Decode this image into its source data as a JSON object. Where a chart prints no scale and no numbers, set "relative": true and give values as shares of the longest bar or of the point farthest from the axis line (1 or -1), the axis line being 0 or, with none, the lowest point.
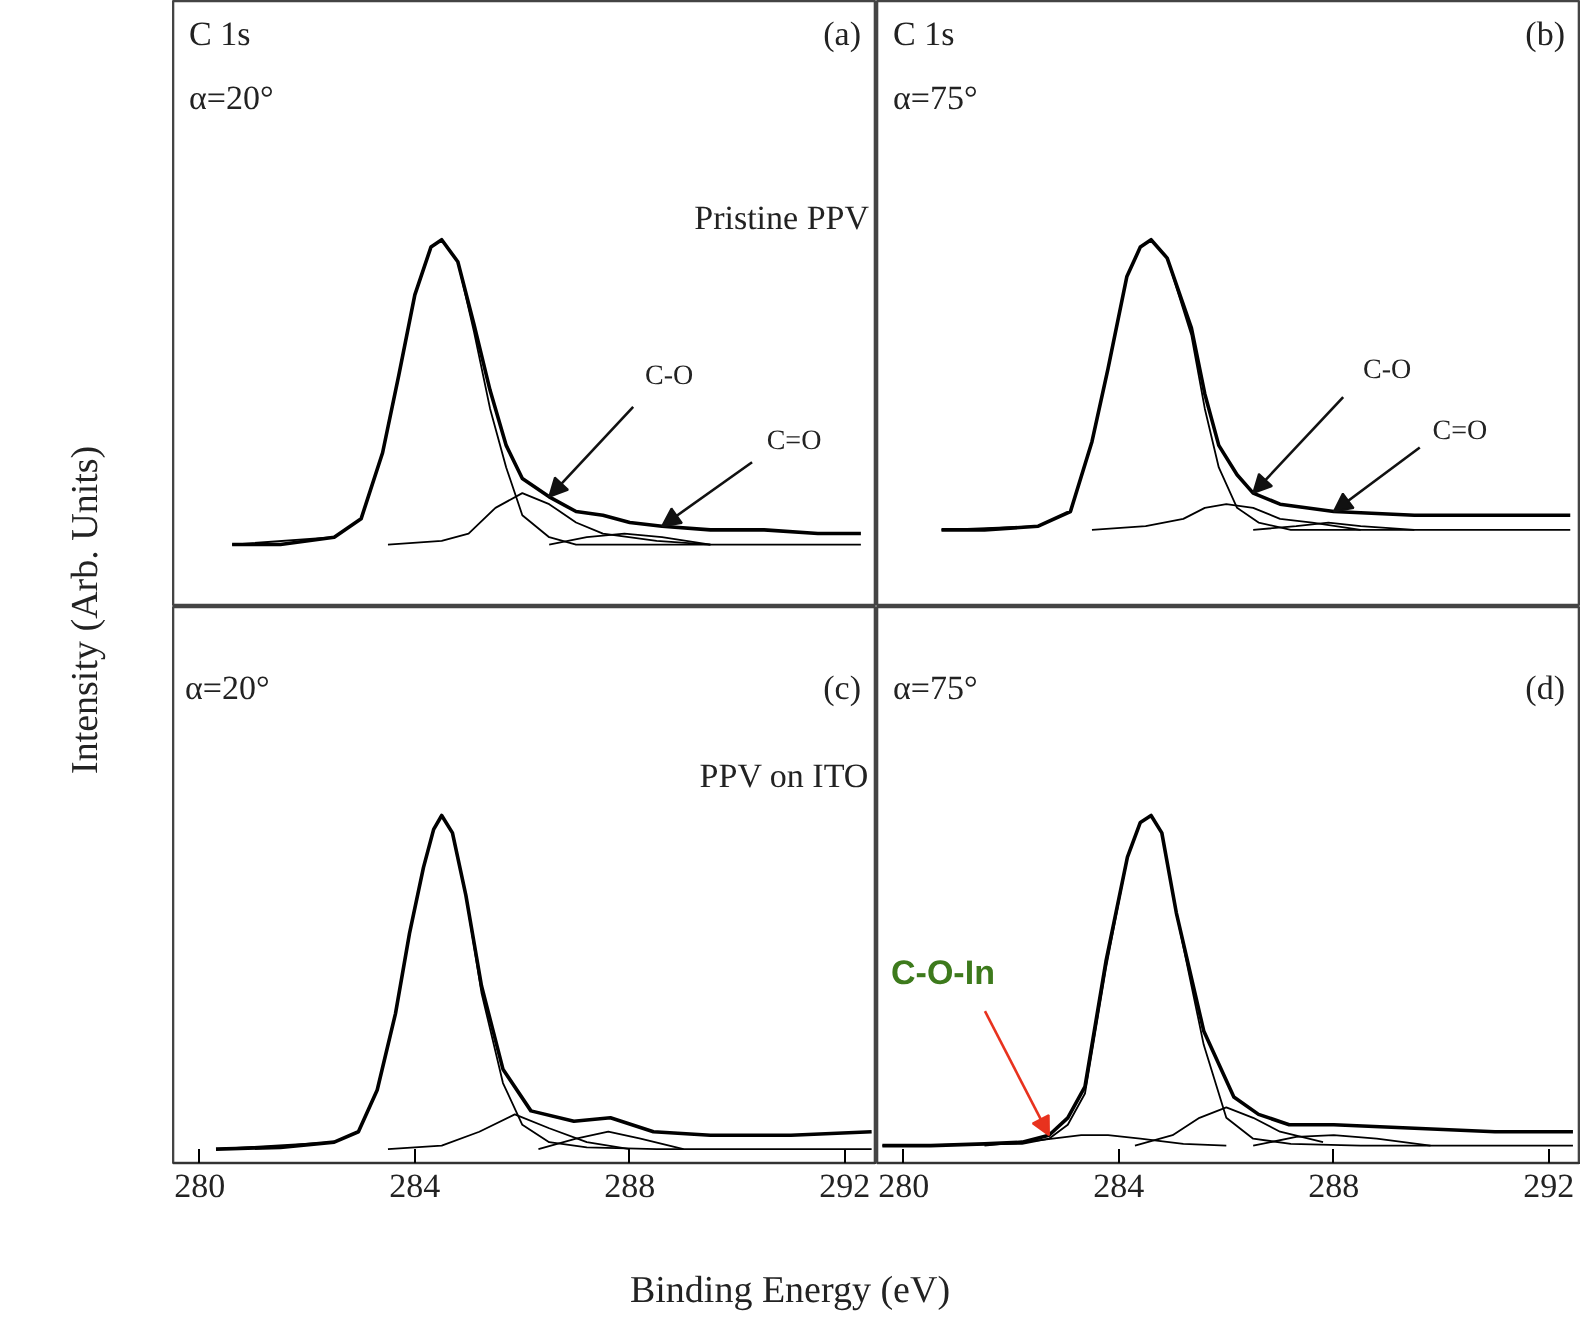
{
  "chart_data": [
    {
      "type": "line",
      "relative": true,
      "xlim": [
        279.5,
        292.6
      ],
      "tick_labels": false,
      "ylabel": "Intensity (Arb. Units)",
      "annotations": [
        "C 1s",
        "α=20°",
        "(a)",
        "Pristine PPV",
        {
          "text": "C-O",
          "x": 286.5,
          "y": 0.3
        },
        {
          "text": "C=O",
          "x": 288.6,
          "y": 0.22
        }
      ],
      "series": [
        {
          "color": "#000000",
          "x": [
            280.6,
            281.5,
            282.5,
            283.0,
            283.4,
            283.7,
            284.0,
            284.3,
            284.5,
            284.8,
            285.1,
            285.4,
            285.7,
            286.0,
            286.5,
            287.0,
            287.5,
            288.0,
            288.6,
            289.5,
            290.5,
            291.5,
            292.3
          ],
          "values": [
            0.17,
            0.17,
            0.19,
            0.24,
            0.42,
            0.63,
            0.85,
            0.98,
            1,
            0.94,
            0.77,
            0.59,
            0.44,
            0.35,
            0.3,
            0.26,
            0.25,
            0.23,
            0.22,
            0.21,
            0.21,
            0.2,
            0.2
          ]
        },
        {
          "color": "#000000",
          "x": [
            280.6,
            282.5,
            283.0,
            283.4,
            283.7,
            284.0,
            284.3,
            284.5,
            284.8,
            285.1,
            285.4,
            285.7,
            286.0,
            286.5,
            287.0,
            288.0,
            290.0,
            292.3
          ],
          "values": [
            0.17,
            0.19,
            0.24,
            0.42,
            0.63,
            0.85,
            0.98,
            1,
            0.94,
            0.75,
            0.54,
            0.38,
            0.25,
            0.19,
            0.17,
            0.17,
            0.17,
            0.17
          ]
        },
        {
          "color": "#000000",
          "x": [
            283.5,
            284.5,
            285.0,
            285.5,
            286.0,
            286.5,
            287.0,
            287.5,
            288.5,
            289.5
          ],
          "values": [
            0.17,
            0.18,
            0.2,
            0.27,
            0.31,
            0.28,
            0.23,
            0.2,
            0.18,
            0.17
          ]
        },
        {
          "color": "#000000",
          "x": [
            286.5,
            287.2,
            287.9,
            288.6,
            289.5
          ],
          "values": [
            0.17,
            0.19,
            0.2,
            0.19,
            0.17
          ]
        }
      ]
    },
    {
      "type": "line",
      "relative": true,
      "xlim": [
        279.5,
        292.6
      ],
      "tick_labels": false,
      "annotations": [
        "C 1s",
        "α=75°",
        "(b)",
        {
          "text": "C-O",
          "x": 286.5,
          "y": 0.31
        },
        {
          "text": "C=O",
          "x": 288.0,
          "y": 0.26
        }
      ],
      "series": [
        {
          "color": "#000000",
          "x": [
            280.7,
            281.5,
            282.5,
            283.1,
            283.5,
            283.8,
            284.15,
            284.4,
            284.6,
            284.9,
            285.35,
            285.6,
            285.86,
            286.2,
            286.5,
            287.0,
            288.0,
            289.5,
            291.0,
            292.4
          ],
          "values": [
            0.21,
            0.21,
            0.22,
            0.26,
            0.45,
            0.65,
            0.9,
            0.98,
            1,
            0.95,
            0.76,
            0.58,
            0.44,
            0.36,
            0.31,
            0.28,
            0.26,
            0.25,
            0.25,
            0.25
          ]
        },
        {
          "color": "#000000",
          "x": [
            280.7,
            282.5,
            283.1,
            283.5,
            283.8,
            284.15,
            284.4,
            284.6,
            284.9,
            285.35,
            285.6,
            285.86,
            286.2,
            286.6,
            287.2,
            288.5,
            292.4
          ],
          "values": [
            0.21,
            0.22,
            0.26,
            0.45,
            0.65,
            0.9,
            0.98,
            1,
            0.95,
            0.74,
            0.54,
            0.38,
            0.27,
            0.23,
            0.21,
            0.21,
            0.21
          ]
        },
        {
          "color": "#000000",
          "x": [
            283.5,
            284.5,
            285.2,
            285.6,
            286.0,
            286.5,
            287.0,
            287.6,
            288.5
          ],
          "values": [
            0.21,
            0.22,
            0.24,
            0.27,
            0.28,
            0.27,
            0.24,
            0.23,
            0.21
          ]
        },
        {
          "color": "#000000",
          "x": [
            286.5,
            287.3,
            287.9,
            288.5,
            289.5
          ],
          "values": [
            0.21,
            0.22,
            0.23,
            0.22,
            0.21
          ]
        }
      ]
    },
    {
      "type": "line",
      "relative": true,
      "xlim": [
        279.5,
        292.6
      ],
      "xticks": [
        280,
        284,
        288,
        292
      ],
      "tick_labels": "x",
      "xlabel": "Binding Energy (eV)",
      "annotations": [
        "α=20°",
        "(c)",
        "PPV on ITO"
      ],
      "series": [
        {
          "color": "#000000",
          "x": [
            280.3,
            281.5,
            282.5,
            282.95,
            283.3,
            283.64,
            283.9,
            284.16,
            284.35,
            284.5,
            284.7,
            284.95,
            285.24,
            285.64,
            286.16,
            286.96,
            287.64,
            288.44,
            289.5,
            291.0,
            292.5
          ],
          "values": [
            0.04,
            0.045,
            0.06,
            0.09,
            0.21,
            0.43,
            0.66,
            0.85,
            0.96,
            1,
            0.95,
            0.77,
            0.51,
            0.27,
            0.15,
            0.12,
            0.13,
            0.09,
            0.08,
            0.08,
            0.09
          ]
        },
        {
          "color": "#000000",
          "x": [
            280.3,
            282.5,
            282.95,
            283.3,
            283.64,
            283.9,
            284.16,
            284.35,
            284.5,
            284.7,
            284.95,
            285.24,
            285.64,
            286.0,
            286.5,
            287.2,
            288.5,
            292.5
          ],
          "values": [
            0.04,
            0.06,
            0.09,
            0.21,
            0.43,
            0.66,
            0.85,
            0.96,
            1,
            0.95,
            0.77,
            0.49,
            0.23,
            0.11,
            0.06,
            0.045,
            0.04,
            0.04
          ]
        },
        {
          "color": "#000000",
          "x": [
            283.5,
            284.5,
            285.2,
            285.86,
            286.5,
            287.2,
            288.0
          ],
          "values": [
            0.04,
            0.05,
            0.09,
            0.14,
            0.1,
            0.06,
            0.04
          ]
        },
        {
          "color": "#000000",
          "x": [
            286.3,
            287.0,
            287.6,
            288.2,
            289.0
          ],
          "values": [
            0.04,
            0.07,
            0.09,
            0.07,
            0.04
          ]
        }
      ]
    },
    {
      "type": "line",
      "relative": true,
      "xlim": [
        279.5,
        292.6
      ],
      "xticks": [
        280,
        284,
        288,
        292
      ],
      "tick_labels": "x",
      "annotations": [
        "α=75°",
        "(d)",
        {
          "text": "C-O-In",
          "x": 282.7,
          "y": 0.08
        }
      ],
      "series": [
        {
          "color": "#000000",
          "x": [
            279.6,
            280.5,
            281.5,
            282.2,
            282.7,
            283.05,
            283.37,
            283.76,
            284.16,
            284.4,
            284.6,
            284.8,
            285.07,
            285.58,
            286.14,
            286.6,
            287.17,
            288.0,
            289.5,
            291.0,
            292.45
          ],
          "values": [
            0.05,
            0.05,
            0.055,
            0.06,
            0.08,
            0.13,
            0.22,
            0.58,
            0.88,
            0.98,
            1,
            0.95,
            0.72,
            0.38,
            0.19,
            0.14,
            0.11,
            0.11,
            0.1,
            0.09,
            0.09
          ]
        },
        {
          "color": "#000000",
          "x": [
            279.6,
            282.2,
            282.7,
            283.05,
            283.37,
            283.76,
            284.16,
            284.4,
            284.6,
            284.8,
            285.07,
            285.58,
            286.0,
            286.5,
            287.2,
            288.5,
            292.45
          ],
          "values": [
            0.05,
            0.055,
            0.07,
            0.11,
            0.2,
            0.56,
            0.88,
            0.98,
            1,
            0.95,
            0.72,
            0.34,
            0.13,
            0.07,
            0.055,
            0.05,
            0.05
          ]
        },
        {
          "color": "#000000",
          "x": [
            281.5,
            282.5,
            283.3,
            283.8,
            284.4,
            285.2,
            286.0
          ],
          "values": [
            0.05,
            0.065,
            0.08,
            0.08,
            0.07,
            0.055,
            0.05
          ]
        },
        {
          "color": "#000000",
          "x": [
            284.3,
            285.0,
            285.5,
            286.0,
            286.5,
            287.0,
            287.8
          ],
          "values": [
            0.05,
            0.08,
            0.13,
            0.16,
            0.13,
            0.09,
            0.06
          ]
        },
        {
          "color": "#000000",
          "x": [
            286.5,
            287.3,
            288.0,
            288.8,
            289.8
          ],
          "values": [
            0.05,
            0.075,
            0.08,
            0.07,
            0.05
          ]
        }
      ]
    }
  ]
}
